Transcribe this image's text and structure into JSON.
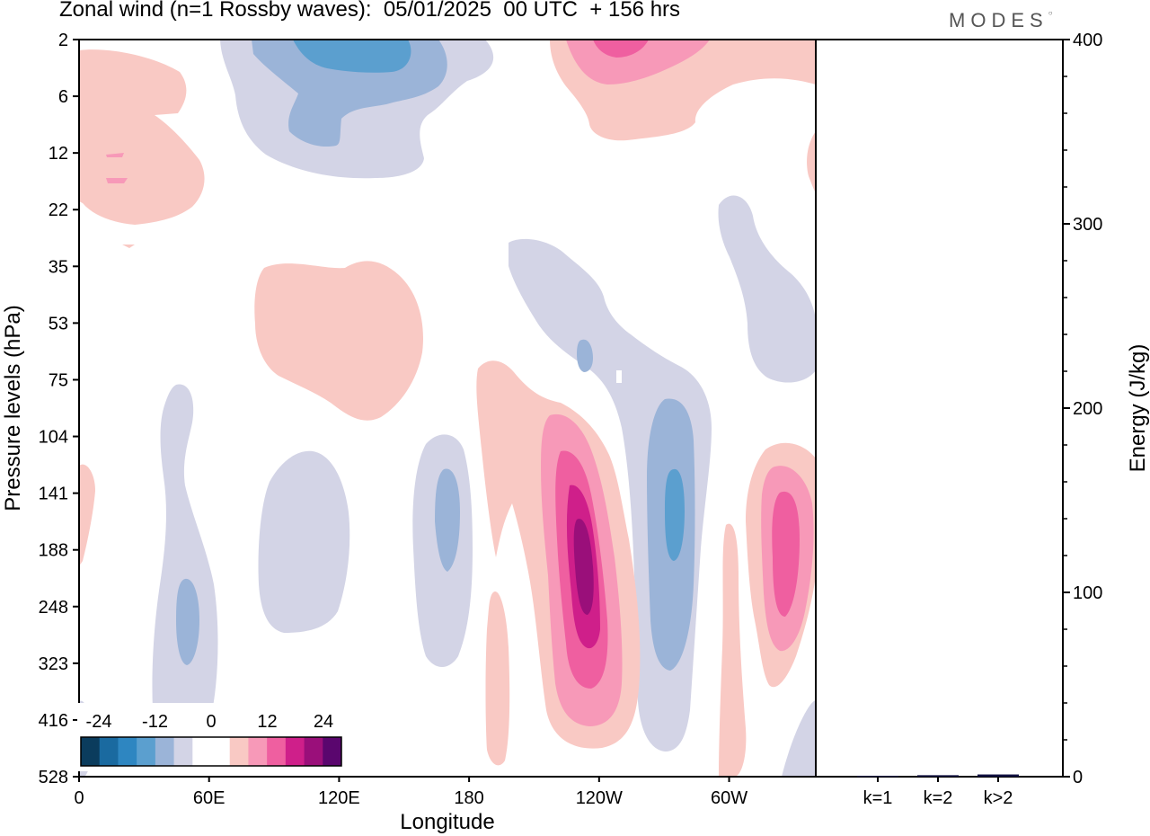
{
  "title": "Zonal wind (n=1 Rossby waves):  05/01/2025  00 UTC  + 156 hrs",
  "logo": "MODES",
  "chart_data": [
    {
      "type": "heatmap",
      "title": "Zonal wind (n=1 Rossby waves):  05/01/2025  00 UTC  + 156 hrs",
      "xlabel": "Longitude",
      "ylabel": "Pressure levels (hPa)",
      "x_ticks": [
        "0",
        "60E",
        "120E",
        "180",
        "120W",
        "60W"
      ],
      "y_ticks": [
        "2",
        "6",
        "12",
        "22",
        "35",
        "53",
        "75",
        "104",
        "141",
        "188",
        "248",
        "323",
        "416",
        "528"
      ],
      "xlim": [
        0,
        340
      ],
      "colorbar": {
        "tick_labels": [
          "-24",
          "-12",
          "0",
          "12",
          "24"
        ],
        "colors": [
          "#0b3c5d",
          "#1a6aa0",
          "#2e86c1",
          "#5b9fcf",
          "#9bb4d8",
          "#d3d4e6",
          "#ffffff",
          "#ffffff",
          "#f9c9c4",
          "#f799b8",
          "#ef5fa0",
          "#cf1f8a",
          "#9a0f7a",
          "#5a066e"
        ]
      },
      "contours": [
        {
          "level": -6,
          "color": "#d3d4e6",
          "lon": 1,
          "lev": 3
        },
        {
          "level": -12,
          "color": "#9bb4d8",
          "lon": 1,
          "lev": 3
        },
        {
          "level": 6,
          "color": "#f9c9c4",
          "lon": 1,
          "lev": 3
        }
      ]
    },
    {
      "type": "bar",
      "categories": [
        "k=1",
        "k=2",
        "k>2"
      ],
      "values": [
        0.5,
        0.8,
        1.2
      ],
      "ylabel": "Energy (J/kg)",
      "ylim": [
        0,
        400
      ],
      "y_ticks": [
        "0",
        "100",
        "200",
        "300",
        "400"
      ],
      "bar_color": "#101040"
    }
  ]
}
